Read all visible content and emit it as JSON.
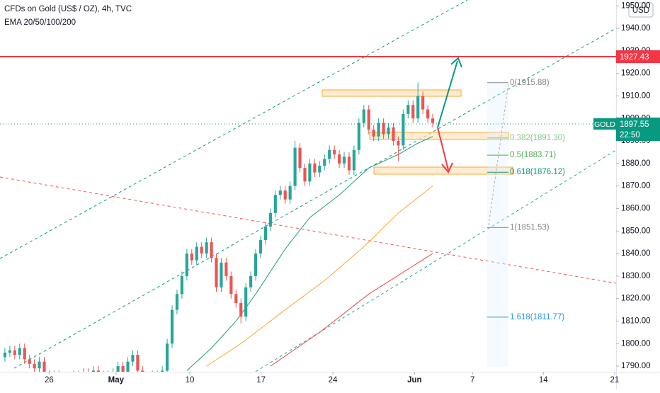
{
  "chart_data": {
    "type": "candlestick",
    "title": "CFDs on Gold (US$ / OZ), 4h, TVC",
    "subtitle": "EMA 20/50/100/200",
    "currency": "USD",
    "up_color": "#26a69a",
    "down_color": "#ef5350",
    "open": [
      1794,
      1796,
      1797,
      1795,
      1798,
      1793,
      1791,
      1789,
      1792,
      1786,
      1784,
      1786,
      1783,
      1785,
      1782,
      1786,
      1784,
      1787,
      1785,
      1788,
      1784,
      1786,
      1783,
      1787,
      1790,
      1786,
      1792,
      1795,
      1788,
      1785,
      1783,
      1786,
      1784,
      1788,
      1800,
      1815,
      1822,
      1830,
      1840,
      1837,
      1843,
      1840,
      1845,
      1838,
      1825,
      1836,
      1830,
      1822,
      1818,
      1812,
      1825,
      1830,
      1840,
      1846,
      1852,
      1858,
      1866,
      1868,
      1864,
      1870,
      1887,
      1878,
      1872,
      1880,
      1876,
      1879,
      1882,
      1886,
      1884,
      1880,
      1883,
      1877,
      1886,
      1898,
      1904,
      1895,
      1892,
      1898,
      1893,
      1896,
      1890,
      1888,
      1902,
      1906,
      1900,
      1910,
      1904,
      1900
    ],
    "high": [
      1798,
      1799,
      1799,
      1800,
      1800,
      1795,
      1793,
      1794,
      1794,
      1788,
      1788,
      1788,
      1787,
      1787,
      1788,
      1788,
      1789,
      1789,
      1790,
      1790,
      1788,
      1788,
      1789,
      1792,
      1792,
      1794,
      1797,
      1797,
      1790,
      1787,
      1788,
      1788,
      1790,
      1802,
      1817,
      1824,
      1832,
      1842,
      1842,
      1845,
      1845,
      1847,
      1847,
      1840,
      1838,
      1838,
      1832,
      1824,
      1820,
      1827,
      1832,
      1842,
      1848,
      1854,
      1860,
      1868,
      1870,
      1870,
      1872,
      1890,
      1889,
      1880,
      1882,
      1882,
      1881,
      1884,
      1888,
      1888,
      1886,
      1885,
      1885,
      1888,
      1900,
      1906,
      1906,
      1897,
      1900,
      1900,
      1898,
      1898,
      1892,
      1904,
      1908,
      1908,
      1916,
      1912,
      1906,
      1902
    ],
    "low": [
      1792,
      1794,
      1793,
      1793,
      1791,
      1789,
      1787,
      1787,
      1784,
      1782,
      1782,
      1781,
      1781,
      1780,
      1780,
      1782,
      1782,
      1783,
      1783,
      1782,
      1782,
      1781,
      1781,
      1785,
      1784,
      1784,
      1790,
      1786,
      1783,
      1781,
      1781,
      1782,
      1782,
      1786,
      1798,
      1813,
      1820,
      1828,
      1835,
      1835,
      1838,
      1838,
      1836,
      1823,
      1823,
      1828,
      1820,
      1816,
      1809,
      1810,
      1823,
      1828,
      1838,
      1844,
      1850,
      1856,
      1864,
      1862,
      1862,
      1868,
      1876,
      1870,
      1870,
      1874,
      1874,
      1877,
      1880,
      1882,
      1878,
      1878,
      1875,
      1875,
      1884,
      1896,
      1893,
      1890,
      1890,
      1891,
      1891,
      1888,
      1881,
      1886,
      1900,
      1898,
      1898,
      1902,
      1898,
      1896
    ],
    "close": [
      1796,
      1797,
      1795,
      1798,
      1793,
      1791,
      1789,
      1792,
      1786,
      1784,
      1786,
      1783,
      1785,
      1782,
      1786,
      1784,
      1787,
      1785,
      1788,
      1784,
      1786,
      1783,
      1787,
      1790,
      1786,
      1792,
      1795,
      1788,
      1785,
      1783,
      1786,
      1784,
      1788,
      1800,
      1815,
      1822,
      1830,
      1840,
      1837,
      1843,
      1840,
      1845,
      1838,
      1825,
      1836,
      1830,
      1822,
      1818,
      1812,
      1825,
      1830,
      1840,
      1846,
      1852,
      1858,
      1866,
      1868,
      1864,
      1870,
      1887,
      1878,
      1872,
      1880,
      1876,
      1879,
      1882,
      1886,
      1884,
      1880,
      1883,
      1877,
      1886,
      1898,
      1904,
      1895,
      1892,
      1898,
      1893,
      1896,
      1890,
      1888,
      1902,
      1906,
      1900,
      1910,
      1904,
      1900,
      1898
    ],
    "ema_lines": [
      {
        "color": "#1e9e72",
        "x": [
          37,
          42,
          47,
          51,
          57,
          62,
          68,
          74,
          80,
          84,
          87
        ],
        "values": [
          1788,
          1798,
          1810,
          1822,
          1842,
          1856,
          1866,
          1878,
          1884,
          1889,
          1892
        ]
      },
      {
        "color": "#f7a738",
        "x": [
          41,
          48,
          57,
          65,
          73,
          80,
          87
        ],
        "values": [
          1790,
          1800,
          1815,
          1828,
          1843,
          1858,
          1870
        ]
      },
      {
        "color": "#e84a4a",
        "x": [
          54,
          64,
          74,
          87
        ],
        "values": [
          1790,
          1805,
          1822,
          1840
        ]
      }
    ],
    "xlim": [
      -1,
      124.3
    ],
    "xticks": [
      {
        "value": 9,
        "label": "26"
      },
      {
        "value": 22.6,
        "label": "May"
      },
      {
        "value": 37.6,
        "label": "10"
      },
      {
        "value": 52.1,
        "label": "17"
      },
      {
        "value": 66.7,
        "label": "24"
      },
      {
        "value": 83.3,
        "label": "Jun"
      },
      {
        "value": 95.1,
        "label": "7"
      },
      {
        "value": 109.5,
        "label": "14"
      },
      {
        "value": 124,
        "label": "21"
      }
    ],
    "ylim": [
      1787.5,
      1952.6
    ],
    "yticks": [
      {
        "value": 1790,
        "label": "1790.00"
      },
      {
        "value": 1800,
        "label": "1800.00"
      },
      {
        "value": 1810,
        "label": "1810.00"
      },
      {
        "value": 1820,
        "label": "1820.00"
      },
      {
        "value": 1830,
        "label": "1830.00"
      },
      {
        "value": 1840,
        "label": "1840.00"
      },
      {
        "value": 1850,
        "label": "1850.00"
      },
      {
        "value": 1860,
        "label": "1860.00"
      },
      {
        "value": 1870,
        "label": "1870.00"
      },
      {
        "value": 1880,
        "label": "1880.00"
      },
      {
        "value": 1890,
        "label": "1890.00"
      },
      {
        "value": 1900,
        "label": "1900.00"
      },
      {
        "value": 1910,
        "label": "1910.00"
      },
      {
        "value": 1920,
        "label": "1920.00"
      },
      {
        "value": 1930,
        "label": "1930.00"
      },
      {
        "value": 1940,
        "label": "1940.00"
      },
      {
        "value": 1950,
        "label": "1950.00"
      }
    ],
    "grid": false,
    "price_line": {
      "value": 1927.43,
      "color": "#f23645"
    },
    "last_price": {
      "symbol": "GOLD",
      "value": 1897.55,
      "countdown": "22:50",
      "color": "#089981"
    },
    "fib_levels": [
      {
        "label": "0(1915.88)",
        "value": 1915.88,
        "color": "#888888"
      },
      {
        "label": "0.382(1891.30)",
        "value": 1891.3,
        "color": "#81c784"
      },
      {
        "label": "0.5(1883.71)",
        "value": 1883.71,
        "color": "#4caf50"
      },
      {
        "label": "0.618(1876.12)",
        "value": 1876.12,
        "color": "#089981"
      },
      {
        "label": "1(1851.53)",
        "value": 1851.53,
        "color": "#888888"
      },
      {
        "label": "1.618(1811.77)",
        "value": 1811.77,
        "color": "#2196f3"
      }
    ]
  }
}
